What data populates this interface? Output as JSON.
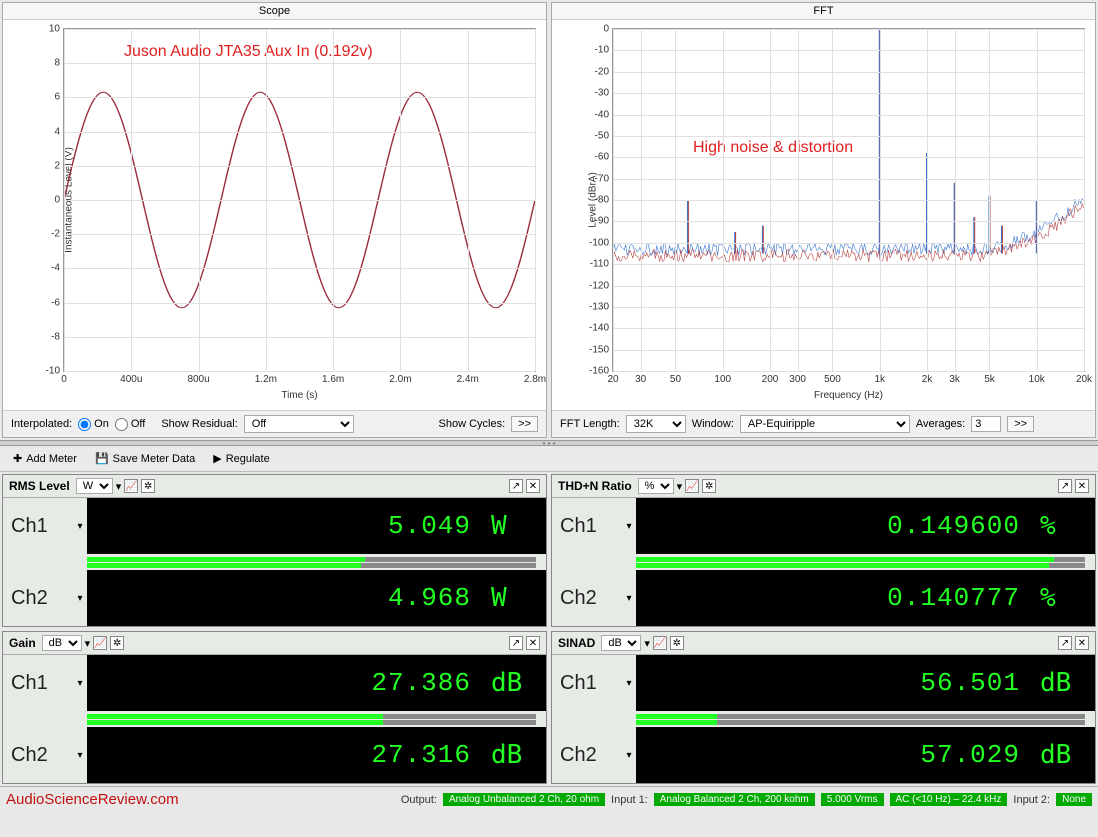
{
  "scope": {
    "title": "Scope",
    "annotation": "Juson Audio JTA35 Aux In (0.192v)",
    "ylabel": "Instantaneous Level (V)",
    "xlabel": "Time (s)",
    "ylim": [
      -10,
      10
    ],
    "ytick_step": 2,
    "xticks": [
      "0",
      "400u",
      "800u",
      "1.2m",
      "1.6m",
      "2.0m",
      "2.4m",
      "2.8m"
    ],
    "amplitude": 6.3,
    "cycles": 3,
    "line_color": "#9a2a3a",
    "grid_color": "#e0e0e0"
  },
  "fft": {
    "title": "FFT",
    "annotation": "High noise & distortion",
    "ylabel": "Level (dBrA)",
    "xlabel": "Frequency (Hz)",
    "ylim": [
      -160,
      0
    ],
    "ytick_step": 10,
    "xticks": [
      "20",
      "30",
      "50",
      "100",
      "200",
      "300",
      "500",
      "1k",
      "2k",
      "3k",
      "5k",
      "10k",
      "20k"
    ],
    "series_colors": [
      "#2a6acc",
      "#b03030"
    ],
    "noise_floor_db": -105,
    "peaks": [
      {
        "freq_label": "60",
        "db": -80
      },
      {
        "freq_label": "120",
        "db": -95
      },
      {
        "freq_label": "180",
        "db": -92
      },
      {
        "freq_label": "1k",
        "db": 0
      },
      {
        "freq_label": "2k",
        "db": -58
      },
      {
        "freq_label": "3k",
        "db": -72
      },
      {
        "freq_label": "4k",
        "db": -88
      },
      {
        "freq_label": "5k",
        "db": -78
      },
      {
        "freq_label": "6k",
        "db": -92
      },
      {
        "freq_label": "10k",
        "db": -80
      }
    ]
  },
  "scope_ctrl": {
    "interpolated_label": "Interpolated:",
    "on": "On",
    "off": "Off",
    "show_residual_label": "Show Residual:",
    "show_residual_value": "Off",
    "show_cycles_label": "Show Cycles:"
  },
  "fft_ctrl": {
    "fft_length_label": "FFT Length:",
    "fft_length_value": "32K",
    "window_label": "Window:",
    "window_value": "AP-Equiripple",
    "averages_label": "Averages:",
    "averages_value": "3"
  },
  "toolbar": {
    "add_meter": "Add Meter",
    "save_meter": "Save Meter Data",
    "regulate": "Regulate"
  },
  "meters": {
    "rms": {
      "title": "RMS Level",
      "unit_sel": "W",
      "ch1": {
        "label": "Ch1",
        "value": "5.049",
        "unit": "W",
        "bar": 0.62
      },
      "ch2": {
        "label": "Ch2",
        "value": "4.968",
        "unit": "W",
        "bar": 0.61
      }
    },
    "thdn": {
      "title": "THD+N Ratio",
      "unit_sel": "%",
      "ch1": {
        "label": "Ch1",
        "value": "0.149600",
        "unit": "%",
        "bar": 0.93
      },
      "ch2": {
        "label": "Ch2",
        "value": "0.140777",
        "unit": "%",
        "bar": 0.92
      }
    },
    "gain": {
      "title": "Gain",
      "unit_sel": "dB",
      "ch1": {
        "label": "Ch1",
        "value": "27.386",
        "unit": "dB",
        "bar": 0.66
      },
      "ch2": {
        "label": "Ch2",
        "value": "27.316",
        "unit": "dB",
        "bar": 0.66
      }
    },
    "sinad": {
      "title": "SINAD",
      "unit_sel": "dB",
      "ch1": {
        "label": "Ch1",
        "value": "56.501",
        "unit": "dB",
        "bar": 0.18
      },
      "ch2": {
        "label": "Ch2",
        "value": "57.029",
        "unit": "dB",
        "bar": 0.18
      }
    }
  },
  "status": {
    "brand": "AudioScienceReview.com",
    "output_label": "Output:",
    "output": "Analog Unbalanced 2 Ch, 20 ohm",
    "input1_label": "Input 1:",
    "input1": "Analog Balanced 2 Ch, 200 kohm",
    "vrms": "5.000 Vrms",
    "ac": "AC (<10 Hz) – 22.4 kHz",
    "input2_label": "Input 2:",
    "input2": "None"
  },
  "colors": {
    "green": "#22ff22",
    "annotation_red": "#e02020",
    "chip_green": "#0a9a0a"
  }
}
